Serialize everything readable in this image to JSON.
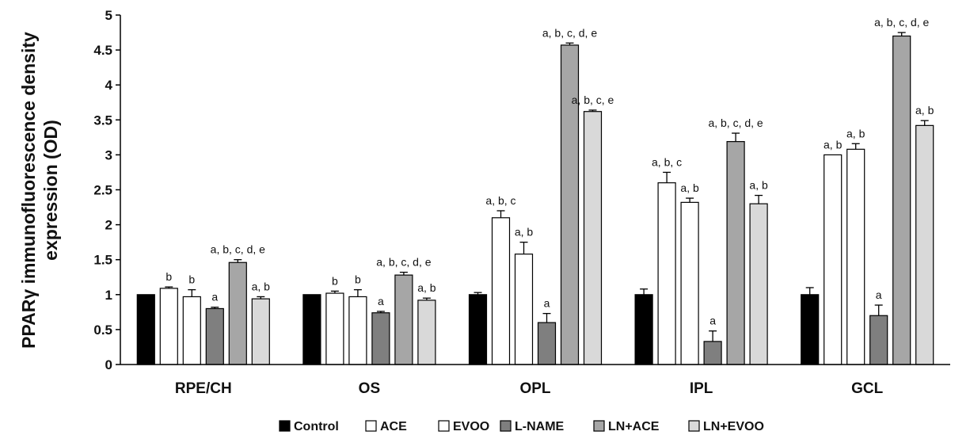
{
  "chart_data": {
    "type": "bar",
    "ylabel_line1": "PPARγ immunofluorescence density",
    "ylabel_line2": "expression (OD)",
    "ylim": [
      0,
      5
    ],
    "yticks": [
      "0",
      "0.5",
      "1",
      "1.5",
      "2",
      "2.5",
      "3",
      "3.5",
      "4",
      "4.5",
      "5"
    ],
    "categories": [
      "RPE/CH",
      "OS",
      "OPL",
      "IPL",
      "GCL"
    ],
    "legend_position": "bottom",
    "series": [
      {
        "name": "Control",
        "color": "#000000",
        "values": [
          1.0,
          1.0,
          1.0,
          1.0,
          1.0
        ],
        "errors": [
          0.0,
          0.0,
          0.03,
          0.08,
          0.1
        ],
        "labels": [
          "",
          "",
          "",
          "",
          ""
        ]
      },
      {
        "name": "ACE",
        "color": "#ffffff",
        "values": [
          1.09,
          1.02,
          2.1,
          2.6,
          3.0
        ],
        "errors": [
          0.02,
          0.03,
          0.1,
          0.15,
          0.0
        ],
        "labels": [
          "b",
          "b",
          "a, b, c",
          "a, b, c",
          "a, b"
        ]
      },
      {
        "name": "EVOO",
        "color": "#ffffff",
        "values": [
          0.97,
          0.97,
          1.58,
          2.32,
          3.08
        ],
        "errors": [
          0.1,
          0.1,
          0.17,
          0.06,
          0.08
        ],
        "labels": [
          "b",
          "b",
          "a, b",
          "a, b",
          "a, b"
        ]
      },
      {
        "name": "L-NAME",
        "color": "#7f7f7f",
        "values": [
          0.8,
          0.74,
          0.6,
          0.33,
          0.7
        ],
        "errors": [
          0.02,
          0.02,
          0.13,
          0.15,
          0.15
        ],
        "labels": [
          "a",
          "a",
          "a",
          "a",
          "a"
        ]
      },
      {
        "name": "LN+ACE",
        "color": "#a6a6a6",
        "values": [
          1.46,
          1.28,
          4.57,
          3.19,
          4.7
        ],
        "errors": [
          0.04,
          0.04,
          0.03,
          0.12,
          0.05
        ],
        "labels": [
          "a, b, c, d, e",
          "a, b, c, d, e",
          "a, b, c, d, e",
          "a, b, c, d, e",
          "a, b, c, d, e"
        ]
      },
      {
        "name": "LN+EVOO",
        "color": "#d9d9d9",
        "values": [
          0.94,
          0.92,
          3.62,
          2.3,
          3.42
        ],
        "errors": [
          0.03,
          0.03,
          0.02,
          0.12,
          0.07
        ],
        "labels": [
          "a, b",
          "a, b",
          "a, b, c, e",
          "a, b",
          "a, b"
        ]
      }
    ]
  }
}
